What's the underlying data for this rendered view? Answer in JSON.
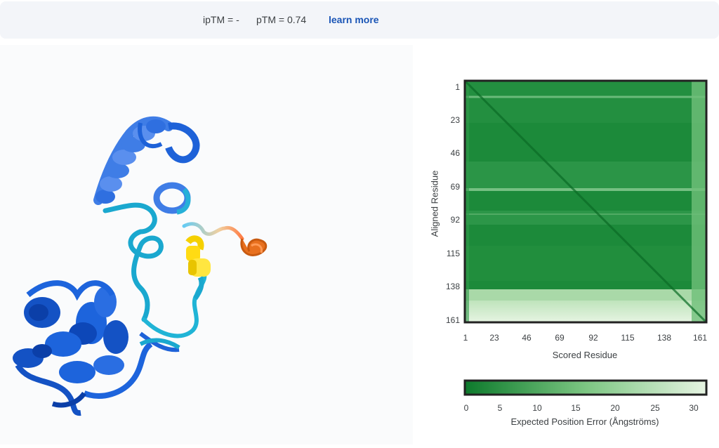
{
  "header": {
    "iptm": "ipTM = -",
    "ptm": "pTM = 0.74",
    "learn_more": "learn more"
  },
  "pae_plot": {
    "y_axis_label": "Aligned Residue",
    "x_axis_label": "Scored Residue",
    "y_ticks": [
      "1",
      "23",
      "46",
      "69",
      "92",
      "115",
      "138",
      "161"
    ],
    "x_ticks": [
      "1",
      "23",
      "46",
      "69",
      "92",
      "115",
      "138",
      "161"
    ],
    "colorbar_ticks": [
      "0",
      "5",
      "10",
      "15",
      "20",
      "25",
      "30"
    ],
    "colorbar_label": "Expected Position Error (Ångströms)",
    "colors": {
      "low": "#0d7a2c",
      "mid": "#7cc682",
      "high": "#e6f4e2"
    }
  },
  "structure_colors": {
    "very_high": "#0053d6",
    "confident": "#65cbf3",
    "low": "#ffdb13",
    "very_low": "#ff7d45"
  }
}
